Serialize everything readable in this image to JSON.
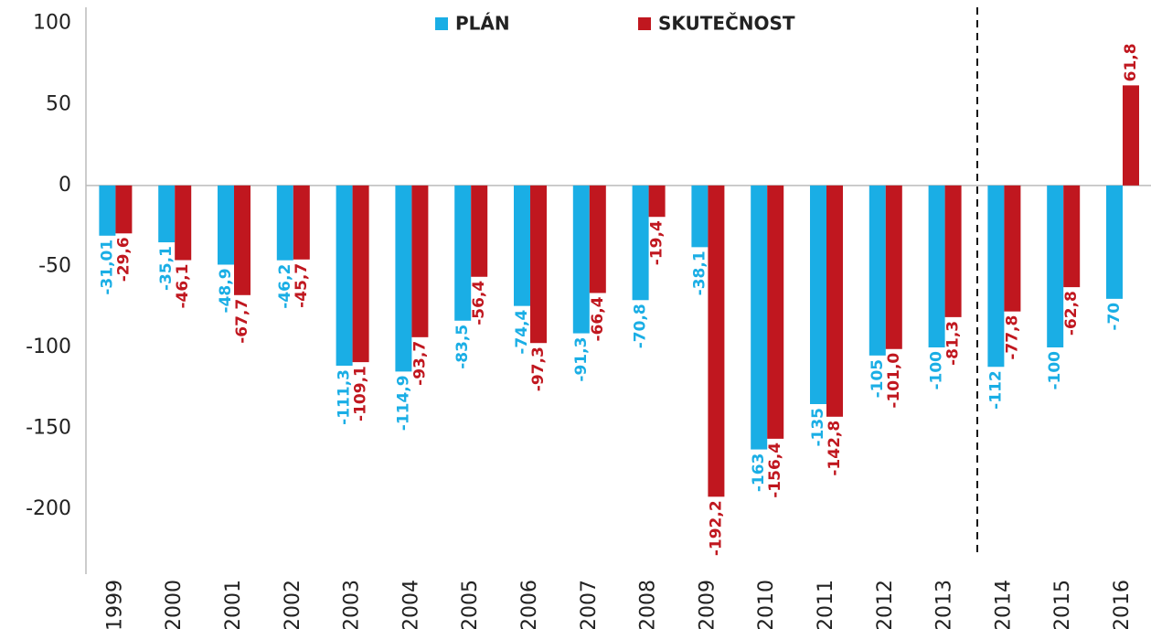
{
  "chart_data": {
    "type": "bar",
    "categories": [
      "1999",
      "2000",
      "2001",
      "2002",
      "2003",
      "2004",
      "2005",
      "2006",
      "2007",
      "2008",
      "2009",
      "2010",
      "2011",
      "2012",
      "2013",
      "2014",
      "2015",
      "2016"
    ],
    "series": [
      {
        "name": "PLÁN",
        "color": "#1aaee5",
        "values": [
          -31.01,
          -35.1,
          -48.9,
          -46.2,
          -111.3,
          -114.9,
          -83.5,
          -74.4,
          -91.3,
          -70.8,
          -38.1,
          -163,
          -135,
          -105,
          -100,
          -112,
          -100,
          -70
        ],
        "value_labels": [
          "-31,01",
          "-35,1",
          "-48,9",
          "-46,2",
          "-111,3",
          "-114,9",
          "-83,5",
          "-74,4",
          "-91,3",
          "-70,8",
          "-38,1",
          "-163",
          "-135",
          "-105",
          "-100",
          "-112",
          "-100",
          "-70"
        ]
      },
      {
        "name": "SKUTEČNOST",
        "color": "#c0171f",
        "values": [
          -29.6,
          -46.1,
          -67.7,
          -45.7,
          -109.1,
          -93.7,
          -56.4,
          -97.3,
          -66.4,
          -19.4,
          -192.2,
          -156.4,
          -142.8,
          -101.0,
          -81.3,
          -77.8,
          -62.8,
          61.8
        ],
        "value_labels": [
          "-29,6",
          "-46,1",
          "-67,7",
          "-45,7",
          "-109,1",
          "-93,7",
          "-56,4",
          "-97,3",
          "-66,4",
          "-19,4",
          "-192,2",
          "-156,4",
          "-142,8",
          "-101,0",
          "-81,3",
          "-77,8",
          "-62,8",
          "61,8"
        ]
      }
    ],
    "ylim": [
      -240,
      110
    ],
    "yticks": [
      100,
      50,
      0,
      -50,
      -100,
      -150,
      -200
    ],
    "grid": false,
    "legend": "upper center"
  }
}
